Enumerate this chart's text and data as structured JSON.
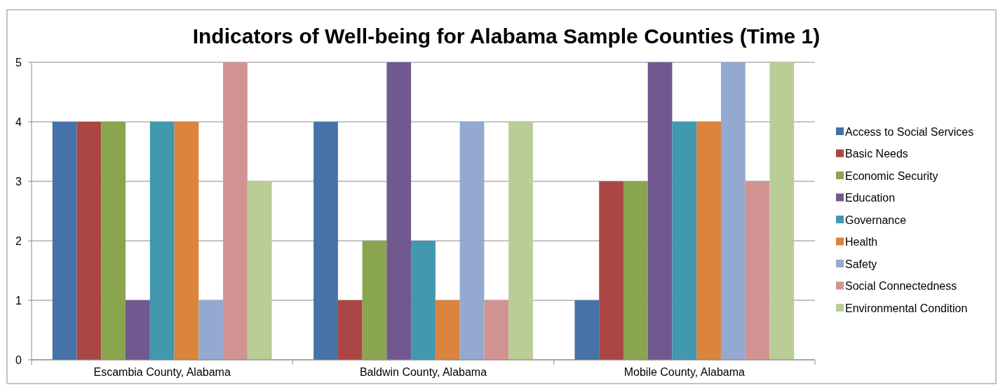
{
  "chart_data": {
    "type": "bar",
    "title": "Indicators of Well-being for Alabama Sample Counties (Time 1)",
    "categories": [
      "Escambia County, Alabama",
      "Baldwin County, Alabama",
      "Mobile County, Alabama"
    ],
    "series": [
      {
        "name": "Access to Social Services",
        "color": "#4572a7",
        "values": [
          4,
          4,
          1
        ]
      },
      {
        "name": "Basic Needs",
        "color": "#aa4643",
        "values": [
          4,
          1,
          3
        ]
      },
      {
        "name": "Economic Security",
        "color": "#89a54e",
        "values": [
          4,
          2,
          3
        ]
      },
      {
        "name": "Education",
        "color": "#71588f",
        "values": [
          1,
          5,
          5
        ]
      },
      {
        "name": "Governance",
        "color": "#4198af",
        "values": [
          4,
          2,
          4
        ]
      },
      {
        "name": "Health",
        "color": "#db843d",
        "values": [
          4,
          1,
          4
        ]
      },
      {
        "name": "Safety",
        "color": "#93a9cf",
        "values": [
          1,
          4,
          5
        ]
      },
      {
        "name": "Social Connectedness",
        "color": "#d19392",
        "values": [
          5,
          1,
          3
        ]
      },
      {
        "name": "Environmental Condition",
        "color": "#b9cd96",
        "values": [
          3,
          4,
          5
        ]
      }
    ],
    "ylim": [
      0,
      5
    ],
    "yticks": [
      0,
      1,
      2,
      3,
      4,
      5
    ],
    "grid": "y",
    "legend": "right"
  }
}
